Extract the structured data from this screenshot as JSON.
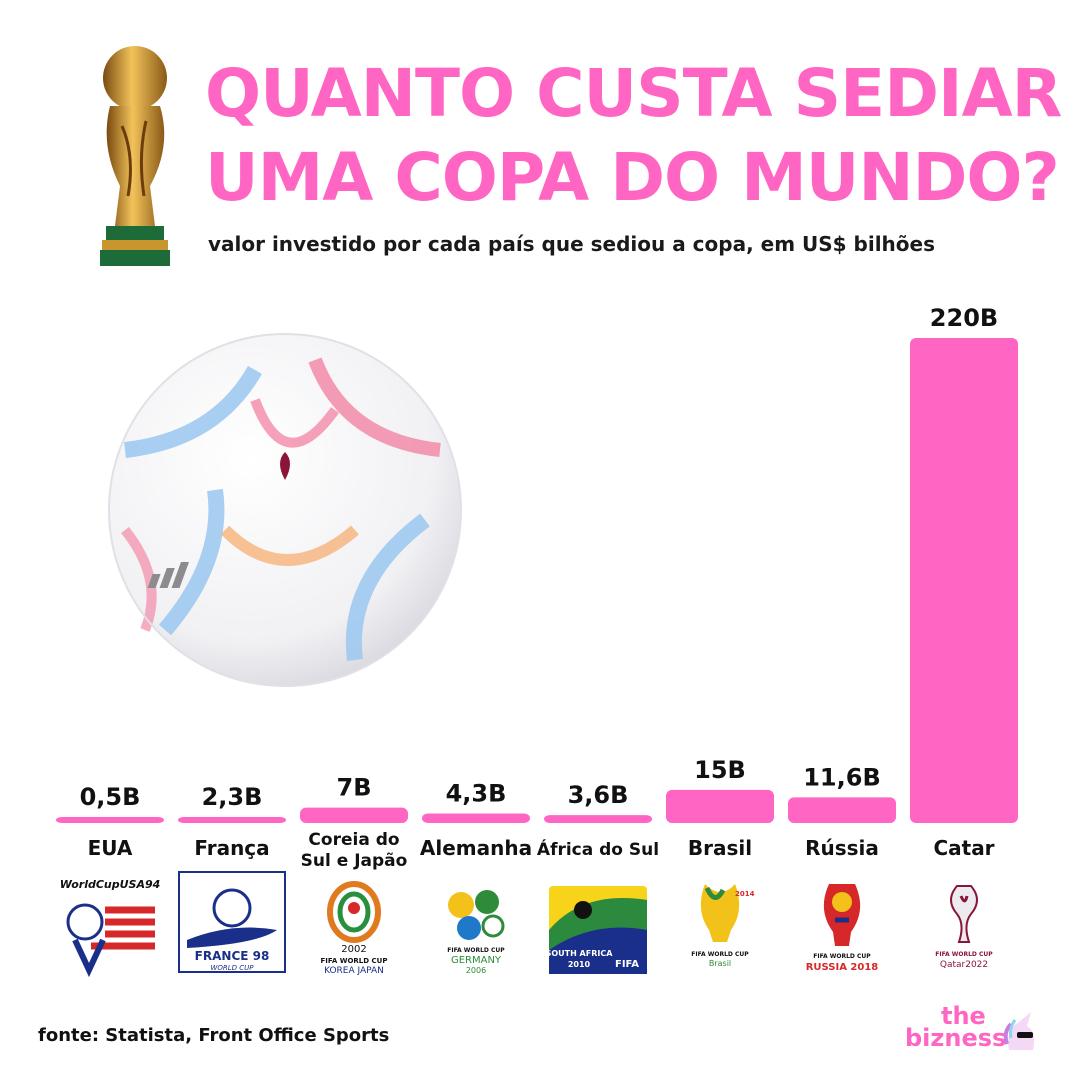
{
  "header": {
    "title_line1": "QUANTO CUSTA SEDIAR",
    "title_line2": "UMA COPA DO MUNDO?",
    "subtitle": "valor investido por cada país que sediou a copa, em US$ bilhões"
  },
  "chart_data": {
    "type": "bar",
    "title": "QUANTO CUSTA SEDIAR UMA COPA DO MUNDO?",
    "subtitle": "valor investido por cada país que sediou a copa, em US$ bilhões",
    "categories": [
      "EUA",
      "França",
      "Coreia do Sul e Japão",
      "Alemanha",
      "África do Sul",
      "Brasil",
      "Rússia",
      "Catar"
    ],
    "category_lines": [
      [
        "EUA"
      ],
      [
        "França"
      ],
      [
        "Coreia do",
        "Sul e Japão"
      ],
      [
        "Alemanha"
      ],
      [
        "África do Sul"
      ],
      [
        "Brasil"
      ],
      [
        "Rússia"
      ],
      [
        "Catar"
      ]
    ],
    "values": [
      0.5,
      2.3,
      7,
      4.3,
      3.6,
      15,
      11.6,
      220
    ],
    "value_labels": [
      "0,5B",
      "2,3B",
      "7B",
      "4,3B",
      "3,6B",
      "15B",
      "11,6B",
      "220B"
    ],
    "ylim": [
      0,
      220
    ],
    "bar_color": "#ff66c4"
  },
  "logos": [
    {
      "icon": "worldcup-usa94-logo-icon",
      "text": "WorldCupUSA94"
    },
    {
      "icon": "france98-logo-icon",
      "text": "FRANCE 98",
      "sub": "WORLD CUP"
    },
    {
      "icon": "korea-japan-2002-logo-icon",
      "text": "2002",
      "sub": "FIFA WORLD CUP",
      "sub2": "KOREA JAPAN"
    },
    {
      "icon": "germany-2006-logo-icon",
      "text": "FIFA WORLD CUP",
      "sub": "GERMANY",
      "sub2": "2006"
    },
    {
      "icon": "south-africa-2010-logo-icon",
      "text": "SOUTH AFRICA",
      "sub": "2010",
      "sub2": "FIFA"
    },
    {
      "icon": "brasil-2014-logo-icon",
      "text": "FIFA WORLD CUP",
      "sub": "Brasil",
      "sub2": "2014"
    },
    {
      "icon": "russia-2018-logo-icon",
      "text": "FIFA WORLD CUP",
      "sub": "RUSSIA 2018"
    },
    {
      "icon": "qatar-2022-logo-icon",
      "text": "FIFA WORLD CUP",
      "sub": "Qatar2022"
    }
  ],
  "footer": {
    "source": "fonte: Statista, Front Office Sports",
    "brand_line1": "the",
    "brand_line2": "bizness"
  },
  "colors": {
    "accent": "#ff66c4",
    "text": "#111111",
    "background": "#ffffff"
  }
}
